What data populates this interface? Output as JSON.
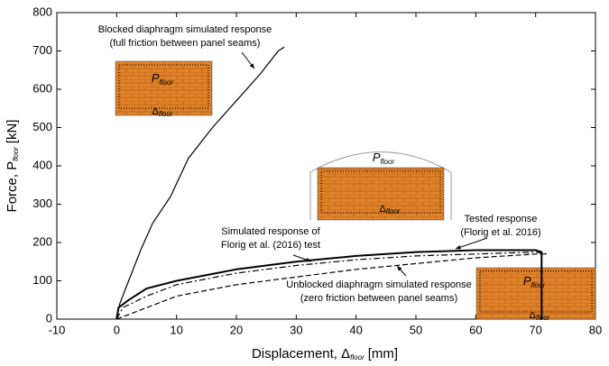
{
  "chart_data": {
    "type": "line",
    "xlabel": {
      "text": "Displacement, Δ",
      "sub": "floor",
      "unit": "[mm]"
    },
    "ylabel": {
      "text": "Force, P",
      "sub": "floor",
      "unit": "[kN]"
    },
    "xlim": [
      -10,
      80
    ],
    "xticks": [
      -10,
      0,
      10,
      20,
      30,
      40,
      50,
      60,
      70,
      80
    ],
    "ylim": [
      0,
      800
    ],
    "yticks": [
      0,
      100,
      200,
      300,
      400,
      500,
      600,
      700,
      800
    ],
    "grid": false,
    "series": [
      {
        "style": "solid",
        "color": "#000000",
        "width": 1.2,
        "annotation": [
          "Blocked diaphragm simulated response",
          "(full friction between panel seams)"
        ],
        "x": [
          0,
          0.5,
          2,
          4,
          6,
          9,
          12,
          16,
          20,
          24,
          27,
          28
        ],
        "values": [
          0,
          40,
          100,
          180,
          250,
          320,
          420,
          500,
          570,
          640,
          700,
          710
        ]
      },
      {
        "style": "solid",
        "color": "#000000",
        "width": 2,
        "annotation": [
          "Tested response",
          "(Florig et al. 2016)"
        ],
        "x": [
          0,
          0.3,
          2,
          5,
          10,
          20,
          30,
          40,
          50,
          60,
          70,
          71,
          71
        ],
        "values": [
          0,
          30,
          50,
          80,
          100,
          130,
          150,
          165,
          175,
          180,
          180,
          175,
          0
        ]
      },
      {
        "style": "dashdot",
        "color": "#000000",
        "width": 1.2,
        "annotation": [
          "Simulated response of",
          "Florig et al. (2016) test"
        ],
        "x": [
          0,
          1,
          5,
          10,
          20,
          30,
          40,
          50,
          60,
          70,
          72
        ],
        "values": [
          0,
          30,
          60,
          90,
          120,
          140,
          155,
          165,
          170,
          175,
          170
        ]
      },
      {
        "style": "dashed",
        "color": "#000000",
        "width": 1.2,
        "annotation": [
          "Unblocked diaphragm simulated response",
          "(zero friction between panel seams)"
        ],
        "x": [
          0,
          5,
          10,
          20,
          30,
          40,
          50,
          60,
          70,
          72
        ],
        "values": [
          0,
          30,
          60,
          90,
          110,
          130,
          145,
          160,
          170,
          170
        ]
      }
    ],
    "insets": [
      {
        "load": "P",
        "load_sub": "floor",
        "disp": "Δ",
        "disp_sub": "floor"
      },
      {
        "load": "P",
        "load_sub": "floor",
        "disp": "Δ",
        "disp_sub": "floor"
      },
      {
        "load": "P",
        "load_sub": "floor",
        "disp": "Δ",
        "disp_sub": "floor"
      }
    ]
  }
}
